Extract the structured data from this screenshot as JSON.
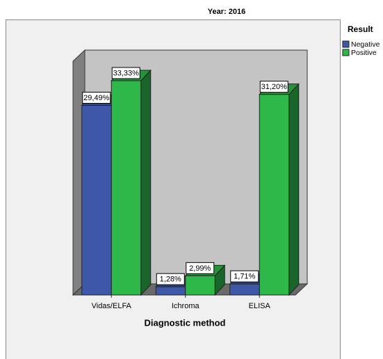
{
  "chart_data": {
    "type": "bar",
    "title": "Year: 2016",
    "x_label": "Diagnostic method",
    "legend_title": "Result",
    "legend_position": "right",
    "categories": [
      "Vidas/ELFA",
      "Ichroma",
      "ELISA"
    ],
    "series": [
      {
        "name": "Negative",
        "color": "#3f57a8",
        "values": [
          29.49,
          1.28,
          1.71
        ],
        "value_labels": [
          "29,49%",
          "1,28%",
          "1,71%"
        ]
      },
      {
        "name": "Positive",
        "color": "#2fb84a",
        "values": [
          33.33,
          2.99,
          31.2
        ],
        "value_labels": [
          "33,33%",
          "2,99%",
          "31,20%"
        ]
      }
    ]
  }
}
